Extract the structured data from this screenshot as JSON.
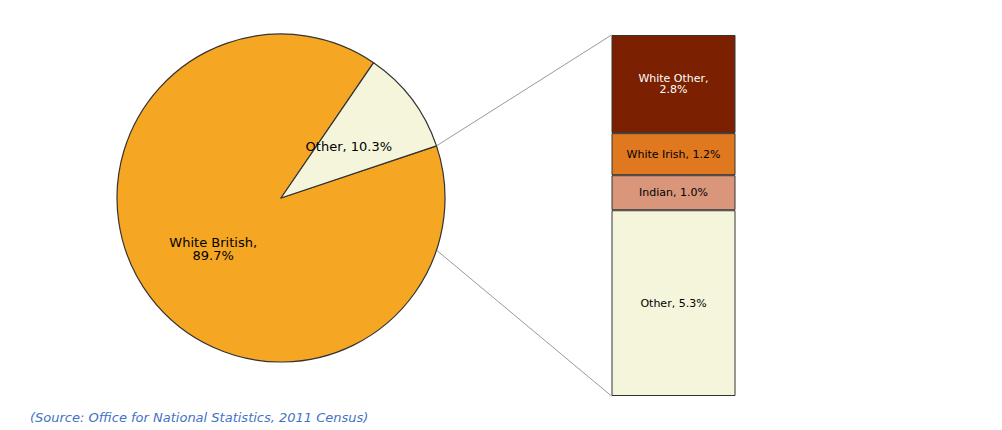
{
  "chart_data": [
    {
      "type": "pie",
      "values": [
        89.7,
        10.3
      ],
      "value_labels": [
        "White British,\n89.7%",
        "Other, 10.3%"
      ],
      "colors": [
        "#F5A623",
        "#F5F5DC"
      ],
      "annotations": [
        "(Source: Office for National Statistics, 2011 Census)"
      ]
    },
    {
      "type": "bar",
      "stacked": true,
      "categories": [
        null
      ],
      "series": [
        {
          "color": "#F5F5DC",
          "values": [
            5.3
          ],
          "value_labels": [
            "Other, 5.3%"
          ]
        },
        {
          "color": "#D9967A",
          "values": [
            1.0
          ],
          "value_labels": [
            "Indian, 1.0%"
          ]
        },
        {
          "color": "#E07820",
          "values": [
            1.2
          ],
          "value_labels": [
            "White Irish, 1.2%"
          ]
        },
        {
          "color": "#7B2000",
          "values": [
            2.8
          ],
          "value_labels": [
            "White Other,\n2.8%"
          ]
        }
      ],
      "ylim": [
        0,
        10.3
      ],
      "tick_labels": false,
      "grid": false
    }
  ]
}
